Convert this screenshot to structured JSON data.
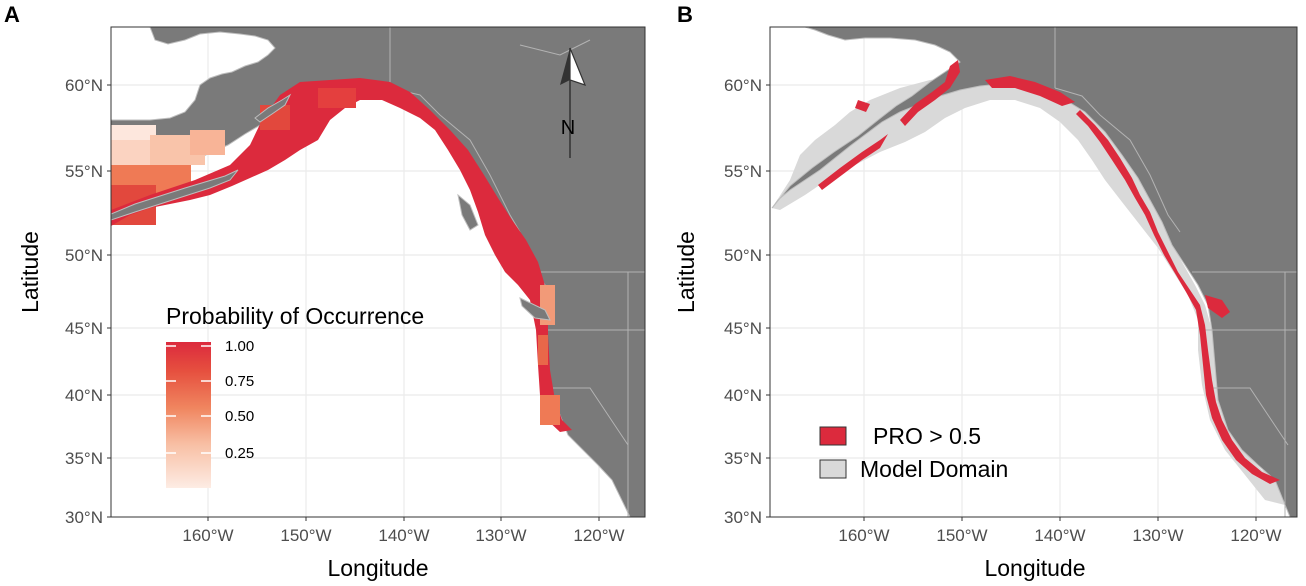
{
  "panels": [
    {
      "letter": "A",
      "xlabel": "Longitude",
      "ylabel": "Latitude",
      "legend_title": "Probability of Occurrence",
      "legend_ticks": [
        "1.00",
        "0.75",
        "0.50",
        "0.25"
      ],
      "legend_type": "continuous",
      "north_arrow_label": "N"
    },
    {
      "letter": "B",
      "xlabel": "Longitude",
      "ylabel": "Latitude",
      "legend_type": "categorical",
      "legend_items": [
        {
          "label": "PRO > 0.5",
          "color": "#dc2a3d"
        },
        {
          "label": "Model Domain",
          "color": "#d9d9d9"
        }
      ]
    }
  ],
  "axes": {
    "y_ticks": [
      "60°N",
      "55°N",
      "50°N",
      "45°N",
      "40°N",
      "35°N",
      "30°N"
    ],
    "x_ticks": [
      "160°W",
      "150°W",
      "140°W",
      "130°W",
      "120°W"
    ]
  },
  "colors": {
    "land": "#7a7a7a",
    "land_border": "#bdbdbd",
    "ocean": "#ffffff",
    "grid": "#ebebeb",
    "high_probability": "#dc2a3d",
    "low_probability": "#fde7dd",
    "model_domain": "#d9d9d9"
  }
}
